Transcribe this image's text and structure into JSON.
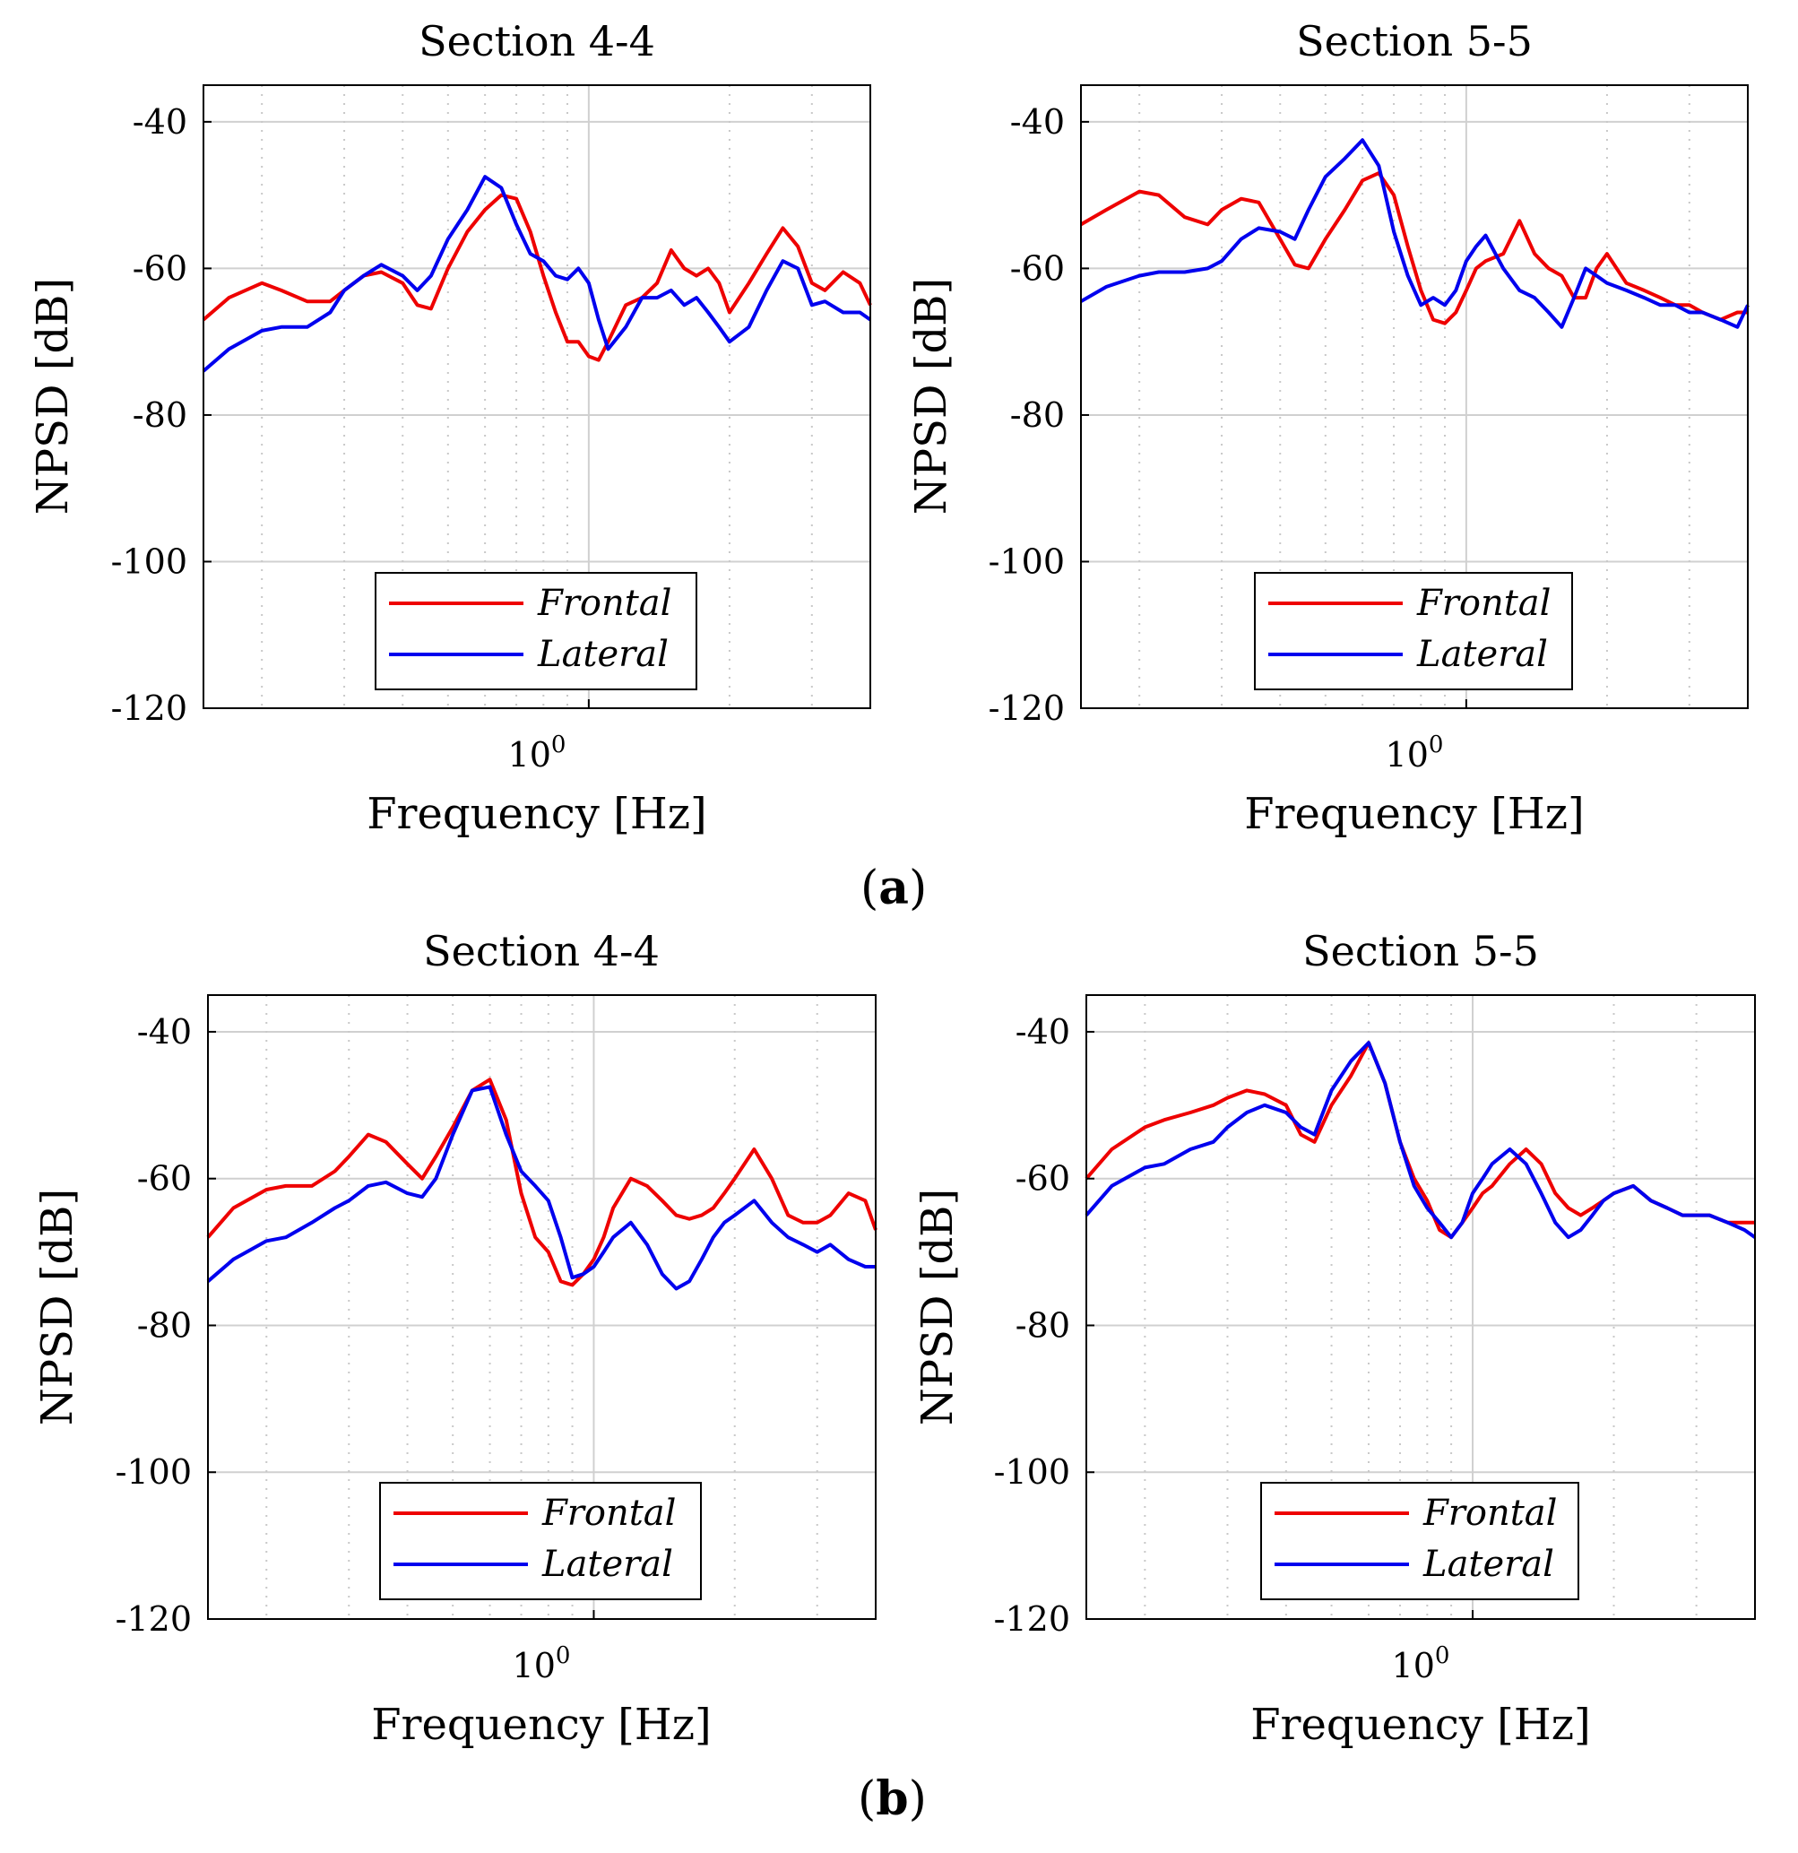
{
  "figure": {
    "panel_labels": [
      {
        "open": "(",
        "letter": "a",
        "close": ")"
      },
      {
        "open": "(",
        "letter": "b",
        "close": ")"
      }
    ]
  },
  "colors": {
    "frontal": "#ee0000",
    "lateral": "#0000ee"
  },
  "chart_data": [
    {
      "type": "line",
      "title": "Section 4-4",
      "xlabel": "Frequency [Hz]",
      "ylabel": "NPSD [dB]",
      "xscale": "log",
      "xlim": [
        0.15,
        4.0
      ],
      "ylim": [
        -120,
        -35
      ],
      "yticks": [
        -40,
        -60,
        -80,
        -100,
        -120
      ],
      "xtick_label": {
        "base": "10",
        "exp": "0"
      },
      "legend": [
        "Frontal",
        "Lateral"
      ],
      "legend_position": "bottom-center",
      "series": [
        {
          "name": "Frontal",
          "x": [
            0.15,
            0.17,
            0.2,
            0.22,
            0.25,
            0.28,
            0.3,
            0.33,
            0.36,
            0.4,
            0.43,
            0.46,
            0.5,
            0.55,
            0.6,
            0.65,
            0.7,
            0.75,
            0.8,
            0.85,
            0.9,
            0.95,
            1.0,
            1.05,
            1.1,
            1.2,
            1.3,
            1.4,
            1.5,
            1.6,
            1.7,
            1.8,
            1.9,
            2.0,
            2.2,
            2.4,
            2.6,
            2.8,
            3.0,
            3.2,
            3.5,
            3.8,
            4.0
          ],
          "y": [
            -67,
            -64,
            -62,
            -63,
            -64.5,
            -64.5,
            -63,
            -61,
            -60.5,
            -62,
            -65,
            -65.5,
            -60,
            -55,
            -52,
            -50,
            -50.5,
            -55,
            -61,
            -66,
            -70,
            -70,
            -72,
            -72.5,
            -70,
            -65,
            -64,
            -62,
            -57.5,
            -60,
            -61,
            -60,
            -62,
            -66,
            -62,
            -58,
            -54.5,
            -57,
            -62,
            -63,
            -60.5,
            -62,
            -65
          ]
        },
        {
          "name": "Lateral",
          "x": [
            0.15,
            0.17,
            0.2,
            0.22,
            0.25,
            0.28,
            0.3,
            0.33,
            0.36,
            0.4,
            0.43,
            0.46,
            0.5,
            0.55,
            0.6,
            0.65,
            0.7,
            0.75,
            0.8,
            0.85,
            0.9,
            0.95,
            1.0,
            1.05,
            1.1,
            1.2,
            1.3,
            1.4,
            1.5,
            1.6,
            1.7,
            1.8,
            1.9,
            2.0,
            2.2,
            2.4,
            2.6,
            2.8,
            3.0,
            3.2,
            3.5,
            3.8,
            4.0
          ],
          "y": [
            -74,
            -71,
            -68.5,
            -68,
            -68,
            -66,
            -63,
            -61,
            -59.5,
            -61,
            -63,
            -61,
            -56,
            -52,
            -47.5,
            -49,
            -54,
            -58,
            -59,
            -61,
            -61.5,
            -60,
            -62,
            -67,
            -71,
            -68,
            -64,
            -64,
            -63,
            -65,
            -64,
            -66,
            -68,
            -70,
            -68,
            -63,
            -59,
            -60,
            -65,
            -64.5,
            -66,
            -66,
            -67
          ]
        }
      ]
    },
    {
      "type": "line",
      "title": "Section 5-5",
      "xlabel": "Frequency [Hz]",
      "ylabel": "NPSD [dB]",
      "xscale": "log",
      "xlim": [
        0.15,
        4.0
      ],
      "ylim": [
        -120,
        -35
      ],
      "yticks": [
        -40,
        -60,
        -80,
        -100,
        -120
      ],
      "xtick_label": {
        "base": "10",
        "exp": "0"
      },
      "legend": [
        "Frontal",
        "Lateral"
      ],
      "legend_position": "bottom-center",
      "series": [
        {
          "name": "Frontal",
          "x": [
            0.15,
            0.17,
            0.2,
            0.22,
            0.25,
            0.28,
            0.3,
            0.33,
            0.36,
            0.4,
            0.43,
            0.46,
            0.5,
            0.55,
            0.6,
            0.65,
            0.7,
            0.75,
            0.8,
            0.85,
            0.9,
            0.95,
            1.0,
            1.05,
            1.1,
            1.2,
            1.3,
            1.4,
            1.5,
            1.6,
            1.7,
            1.8,
            1.9,
            2.0,
            2.2,
            2.4,
            2.6,
            2.8,
            3.0,
            3.2,
            3.5,
            3.8,
            4.0
          ],
          "y": [
            -54,
            -52,
            -49.5,
            -50,
            -53,
            -54,
            -52,
            -50.5,
            -51,
            -56,
            -59.5,
            -60,
            -56,
            -52,
            -48,
            -47,
            -50,
            -57,
            -63,
            -67,
            -67.5,
            -66,
            -63,
            -60,
            -59,
            -58,
            -53.5,
            -58,
            -60,
            -61,
            -64,
            -64,
            -60,
            -58,
            -62,
            -63,
            -64,
            -65,
            -65,
            -66,
            -67,
            -66,
            -66
          ]
        },
        {
          "name": "Lateral",
          "x": [
            0.15,
            0.17,
            0.2,
            0.22,
            0.25,
            0.28,
            0.3,
            0.33,
            0.36,
            0.4,
            0.43,
            0.46,
            0.5,
            0.55,
            0.6,
            0.65,
            0.7,
            0.75,
            0.8,
            0.85,
            0.9,
            0.95,
            1.0,
            1.05,
            1.1,
            1.2,
            1.3,
            1.4,
            1.5,
            1.6,
            1.7,
            1.8,
            1.9,
            2.0,
            2.2,
            2.4,
            2.6,
            2.8,
            3.0,
            3.2,
            3.5,
            3.8,
            4.0
          ],
          "y": [
            -64.5,
            -62.5,
            -61,
            -60.5,
            -60.5,
            -60,
            -59,
            -56,
            -54.5,
            -55,
            -56,
            -52,
            -47.5,
            -45,
            -42.5,
            -46,
            -55,
            -61,
            -65,
            -64,
            -65,
            -63,
            -59,
            -57,
            -55.5,
            -60,
            -63,
            -64,
            -66,
            -68,
            -64,
            -60,
            -61,
            -62,
            -63,
            -64,
            -65,
            -65,
            -66,
            -66,
            -67,
            -68,
            -65
          ]
        }
      ]
    },
    {
      "type": "line",
      "title": "Section 4-4",
      "xlabel": "Frequency [Hz]",
      "ylabel": "NPSD [dB]",
      "xscale": "log",
      "xlim": [
        0.15,
        4.0
      ],
      "ylim": [
        -120,
        -35
      ],
      "yticks": [
        -40,
        -60,
        -80,
        -100,
        -120
      ],
      "xtick_label": {
        "base": "10",
        "exp": "0"
      },
      "legend": [
        "Frontal",
        "Lateral"
      ],
      "legend_position": "bottom-center",
      "series": [
        {
          "name": "Frontal",
          "x": [
            0.15,
            0.17,
            0.2,
            0.22,
            0.25,
            0.28,
            0.3,
            0.33,
            0.36,
            0.4,
            0.43,
            0.46,
            0.5,
            0.55,
            0.6,
            0.65,
            0.7,
            0.75,
            0.8,
            0.85,
            0.9,
            0.95,
            1.0,
            1.05,
            1.1,
            1.2,
            1.3,
            1.4,
            1.5,
            1.6,
            1.7,
            1.8,
            1.9,
            2.0,
            2.2,
            2.4,
            2.6,
            2.8,
            3.0,
            3.2,
            3.5,
            3.8,
            4.0
          ],
          "y": [
            -68,
            -64,
            -61.5,
            -61,
            -61,
            -59,
            -57,
            -54,
            -55,
            -58,
            -60,
            -57,
            -53,
            -48,
            -46.5,
            -52,
            -62,
            -68,
            -70,
            -74,
            -74.5,
            -73,
            -71,
            -68,
            -64,
            -60,
            -61,
            -63,
            -65,
            -65.5,
            -65,
            -64,
            -62,
            -60,
            -56,
            -60,
            -65,
            -66,
            -66,
            -65,
            -62,
            -63,
            -67
          ]
        },
        {
          "name": "Lateral",
          "x": [
            0.15,
            0.17,
            0.2,
            0.22,
            0.25,
            0.28,
            0.3,
            0.33,
            0.36,
            0.4,
            0.43,
            0.46,
            0.5,
            0.55,
            0.6,
            0.65,
            0.7,
            0.75,
            0.8,
            0.85,
            0.9,
            0.95,
            1.0,
            1.05,
            1.1,
            1.2,
            1.3,
            1.4,
            1.5,
            1.6,
            1.7,
            1.8,
            1.9,
            2.0,
            2.2,
            2.4,
            2.6,
            2.8,
            3.0,
            3.2,
            3.5,
            3.8,
            4.0
          ],
          "y": [
            -74,
            -71,
            -68.5,
            -68,
            -66,
            -64,
            -63,
            -61,
            -60.5,
            -62,
            -62.5,
            -60,
            -54,
            -48,
            -47.5,
            -54,
            -59,
            -61,
            -63,
            -68,
            -73.5,
            -73,
            -72,
            -70,
            -68,
            -66,
            -69,
            -73,
            -75,
            -74,
            -71,
            -68,
            -66,
            -65,
            -63,
            -66,
            -68,
            -69,
            -70,
            -69,
            -71,
            -72,
            -72
          ]
        }
      ]
    },
    {
      "type": "line",
      "title": "Section 5-5",
      "xlabel": "Frequency [Hz]",
      "ylabel": "NPSD [dB]",
      "xscale": "log",
      "xlim": [
        0.15,
        4.0
      ],
      "ylim": [
        -120,
        -35
      ],
      "yticks": [
        -40,
        -60,
        -80,
        -100,
        -120
      ],
      "xtick_label": {
        "base": "10",
        "exp": "0"
      },
      "legend": [
        "Frontal",
        "Lateral"
      ],
      "legend_position": "bottom-center",
      "series": [
        {
          "name": "Frontal",
          "x": [
            0.15,
            0.17,
            0.2,
            0.22,
            0.25,
            0.28,
            0.3,
            0.33,
            0.36,
            0.4,
            0.43,
            0.46,
            0.5,
            0.55,
            0.6,
            0.65,
            0.7,
            0.75,
            0.8,
            0.85,
            0.9,
            0.95,
            1.0,
            1.05,
            1.1,
            1.2,
            1.3,
            1.4,
            1.5,
            1.6,
            1.7,
            1.8,
            1.9,
            2.0,
            2.2,
            2.4,
            2.6,
            2.8,
            3.0,
            3.2,
            3.5,
            3.8,
            4.0
          ],
          "y": [
            -60,
            -56,
            -53,
            -52,
            -51,
            -50,
            -49,
            -48,
            -48.5,
            -50,
            -54,
            -55,
            -50,
            -46,
            -41.5,
            -47,
            -55,
            -60,
            -63,
            -67,
            -68,
            -66,
            -64,
            -62,
            -61,
            -58,
            -56,
            -58,
            -62,
            -64,
            -65,
            -64,
            -63,
            -62,
            -61,
            -63,
            -64,
            -65,
            -65,
            -65,
            -66,
            -66,
            -66
          ]
        },
        {
          "name": "Lateral",
          "x": [
            0.15,
            0.17,
            0.2,
            0.22,
            0.25,
            0.28,
            0.3,
            0.33,
            0.36,
            0.4,
            0.43,
            0.46,
            0.5,
            0.55,
            0.6,
            0.65,
            0.7,
            0.75,
            0.8,
            0.85,
            0.9,
            0.95,
            1.0,
            1.05,
            1.1,
            1.2,
            1.3,
            1.4,
            1.5,
            1.6,
            1.7,
            1.8,
            1.9,
            2.0,
            2.2,
            2.4,
            2.6,
            2.8,
            3.0,
            3.2,
            3.5,
            3.8,
            4.0
          ],
          "y": [
            -65,
            -61,
            -58.5,
            -58,
            -56,
            -55,
            -53,
            -51,
            -50,
            -51,
            -53,
            -54,
            -48,
            -44,
            -41.5,
            -47,
            -55,
            -61,
            -64,
            -66,
            -68,
            -66,
            -62,
            -60,
            -58,
            -56,
            -58,
            -62,
            -66,
            -68,
            -67,
            -65,
            -63,
            -62,
            -61,
            -63,
            -64,
            -65,
            -65,
            -65,
            -66,
            -67,
            -68
          ]
        }
      ]
    }
  ]
}
